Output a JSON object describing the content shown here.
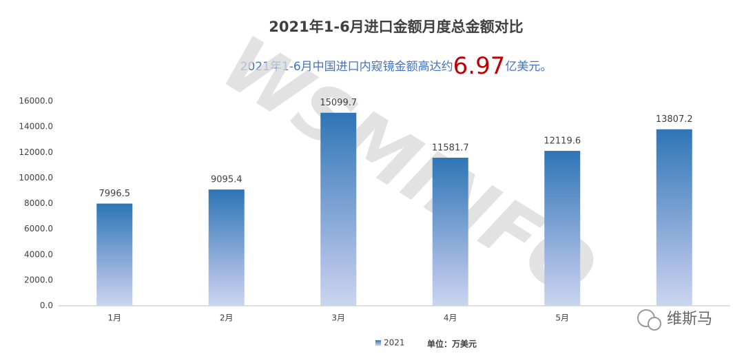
{
  "chart_data": {
    "type": "bar",
    "title": "2021年1-6月进口金额月度总金额对比",
    "subtitle_parts": [
      "2021年1-6月中国进口内窥镜金额高达约",
      "6.97",
      "亿美元。"
    ],
    "unit": "单位：万美元",
    "categories": [
      "1月",
      "2月",
      "3月",
      "4月",
      "5月",
      null
    ],
    "series": [
      {
        "name": "2021",
        "color": "#2e75b6",
        "values": [
          7996.5,
          9095.4,
          15099.7,
          11581.7,
          12119.6,
          13807.2
        ]
      }
    ],
    "ylim": [
      0,
      16000
    ],
    "yticks": [
      {
        "value": 0,
        "label": "0.0"
      },
      {
        "value": 2000,
        "label": "2000.0"
      },
      {
        "value": 4000,
        "label": "4000.0"
      },
      {
        "value": 6000,
        "label": "6000.0"
      },
      {
        "value": 8000,
        "label": "8000.0"
      },
      {
        "value": 10000,
        "label": "10000.0"
      },
      {
        "value": 12000,
        "label": "12000.0"
      },
      {
        "value": 14000,
        "label": "14000.0"
      },
      {
        "value": 16000,
        "label": "16000.0"
      }
    ],
    "grid": false
  },
  "watermark": "WSMINFO",
  "logo": "维斯马"
}
